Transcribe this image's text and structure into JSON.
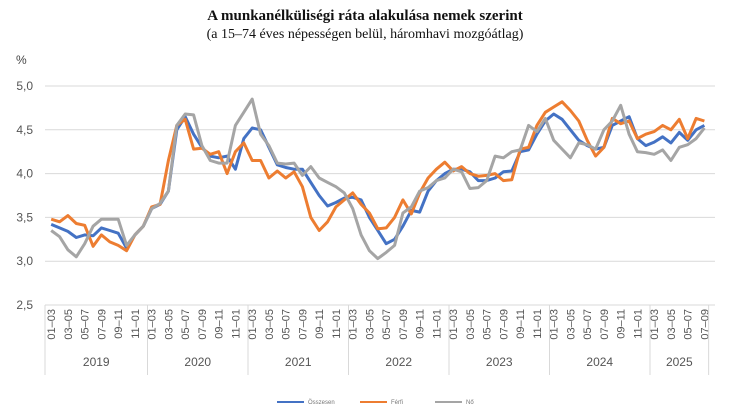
{
  "chart_data": {
    "type": "line",
    "title": "A munkanélküliségi  ráta alakulása nemek szerint",
    "subtitle": "(a 15–74 éves népességen belül, háromhavi mozgóátlag)",
    "ylabel": "%",
    "ylim": [
      2.5,
      5.0
    ],
    "yticks": [
      "2,5",
      "3,0",
      "3,5",
      "4,0",
      "4,5",
      "5,0"
    ],
    "ytick_values": [
      2.5,
      3.0,
      3.5,
      4.0,
      4.5,
      5.0
    ],
    "grid": true,
    "legend_position": "bottom",
    "years": [
      {
        "year": "2019",
        "months": 12
      },
      {
        "year": "2020",
        "months": 12
      },
      {
        "year": "2021",
        "months": 12
      },
      {
        "year": "2022",
        "months": 12
      },
      {
        "year": "2023",
        "months": 12
      },
      {
        "year": "2024",
        "months": 12
      },
      {
        "year": "2025",
        "months": 7
      }
    ],
    "month_labels": [
      "01–03",
      "03–05",
      "05–07",
      "07–09",
      "09–11",
      "11–01"
    ],
    "series": [
      {
        "name": "Összesen",
        "color": "#4472C4",
        "values": [
          3.42,
          3.38,
          3.34,
          3.27,
          3.3,
          3.29,
          3.38,
          3.35,
          3.32,
          3.15,
          3.3,
          3.4,
          3.6,
          3.65,
          3.8,
          4.5,
          4.65,
          4.45,
          4.3,
          4.2,
          4.18,
          4.2,
          4.05,
          4.4,
          4.52,
          4.5,
          4.3,
          4.1,
          4.07,
          4.05,
          4.05,
          3.9,
          3.75,
          3.63,
          3.67,
          3.72,
          3.73,
          3.7,
          3.5,
          3.35,
          3.2,
          3.25,
          3.4,
          3.58,
          3.56,
          3.8,
          3.92,
          4.0,
          4.05,
          4.05,
          4.02,
          3.92,
          3.92,
          3.95,
          4.02,
          4.03,
          4.25,
          4.27,
          4.45,
          4.6,
          4.68,
          4.62,
          4.5,
          4.38,
          4.32,
          4.28,
          4.3,
          4.55,
          4.6,
          4.65,
          4.4,
          4.32,
          4.36,
          4.42,
          4.35,
          4.47,
          4.38,
          4.5,
          4.55
        ]
      },
      {
        "name": "Férfi",
        "color": "#ED7D31",
        "values": [
          3.48,
          3.45,
          3.52,
          3.43,
          3.41,
          3.17,
          3.3,
          3.22,
          3.18,
          3.12,
          3.3,
          3.4,
          3.62,
          3.65,
          4.15,
          4.55,
          4.62,
          4.28,
          4.29,
          4.22,
          4.25,
          4.0,
          4.25,
          4.35,
          4.15,
          4.15,
          3.95,
          4.03,
          3.95,
          4.02,
          3.85,
          3.5,
          3.35,
          3.45,
          3.62,
          3.7,
          3.78,
          3.65,
          3.55,
          3.37,
          3.38,
          3.5,
          3.7,
          3.54,
          3.78,
          3.95,
          4.05,
          4.13,
          4.03,
          4.08,
          4.0,
          3.97,
          3.98,
          4.0,
          3.92,
          3.93,
          4.28,
          4.3,
          4.55,
          4.7,
          4.76,
          4.82,
          4.72,
          4.6,
          4.38,
          4.2,
          4.3,
          4.63,
          4.57,
          4.6,
          4.4,
          4.45,
          4.48,
          4.55,
          4.5,
          4.62,
          4.4,
          4.63,
          4.6
        ]
      },
      {
        "name": "Nő",
        "color": "#A5A5A5",
        "values": [
          3.35,
          3.28,
          3.13,
          3.05,
          3.2,
          3.4,
          3.48,
          3.48,
          3.48,
          3.18,
          3.3,
          3.4,
          3.6,
          3.66,
          3.8,
          4.55,
          4.68,
          4.67,
          4.32,
          4.15,
          4.12,
          4.12,
          4.55,
          4.7,
          4.85,
          4.45,
          4.32,
          4.12,
          4.11,
          4.12,
          3.98,
          4.08,
          3.95,
          3.9,
          3.85,
          3.78,
          3.6,
          3.3,
          3.12,
          3.03,
          3.1,
          3.18,
          3.55,
          3.62,
          3.8,
          3.84,
          3.92,
          3.95,
          4.05,
          4.02,
          3.83,
          3.84,
          3.92,
          4.2,
          4.18,
          4.25,
          4.27,
          4.55,
          4.48,
          4.63,
          4.38,
          4.28,
          4.18,
          4.35,
          4.33,
          4.28,
          4.5,
          4.6,
          4.78,
          4.45,
          4.25,
          4.24,
          4.22,
          4.27,
          4.15,
          4.3,
          4.33,
          4.4,
          4.52
        ]
      }
    ]
  }
}
